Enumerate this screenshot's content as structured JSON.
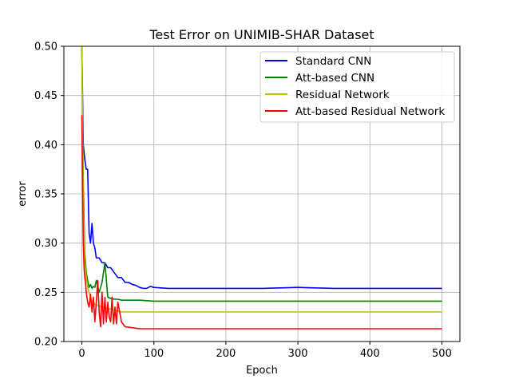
{
  "chart_data": {
    "type": "line",
    "title": "Test Error on UNIMIB-SHAR Dataset",
    "xlabel": "Epoch",
    "ylabel": "error",
    "xlim": [
      -25,
      525
    ],
    "ylim": [
      0.2,
      0.5
    ],
    "xticks": [
      0,
      100,
      200,
      300,
      400,
      500
    ],
    "yticks": [
      0.2,
      0.25,
      0.3,
      0.35,
      0.4,
      0.45,
      0.5
    ],
    "xtick_labels": [
      "0",
      "100",
      "200",
      "300",
      "400",
      "500"
    ],
    "ytick_labels": [
      "0.20",
      "0.25",
      "0.30",
      "0.35",
      "0.40",
      "0.45",
      "0.50"
    ],
    "grid": true,
    "legend_position": "top-right",
    "series": [
      {
        "name": "Standard CNN",
        "color": "#0000ff",
        "x": [
          0,
          2,
          4,
          6,
          8,
          10,
          12,
          14,
          16,
          18,
          20,
          24,
          28,
          32,
          36,
          40,
          45,
          50,
          55,
          60,
          65,
          70,
          75,
          80,
          85,
          90,
          95,
          100,
          120,
          150,
          200,
          250,
          300,
          350,
          400,
          450,
          500
        ],
        "y": [
          0.5,
          0.4,
          0.385,
          0.375,
          0.375,
          0.31,
          0.3,
          0.32,
          0.3,
          0.295,
          0.285,
          0.285,
          0.28,
          0.28,
          0.275,
          0.275,
          0.27,
          0.265,
          0.265,
          0.26,
          0.26,
          0.258,
          0.257,
          0.255,
          0.254,
          0.254,
          0.256,
          0.255,
          0.254,
          0.254,
          0.254,
          0.254,
          0.255,
          0.254,
          0.254,
          0.254,
          0.254
        ]
      },
      {
        "name": "Att-based CNN",
        "color": "#008000",
        "x": [
          0,
          2,
          4,
          6,
          8,
          10,
          12,
          14,
          16,
          18,
          20,
          24,
          28,
          32,
          36,
          40,
          45,
          50,
          55,
          60,
          70,
          80,
          100,
          150,
          200,
          250,
          300,
          350,
          400,
          450,
          500
        ],
        "y": [
          0.5,
          0.36,
          0.29,
          0.27,
          0.262,
          0.255,
          0.258,
          0.254,
          0.256,
          0.255,
          0.262,
          0.25,
          0.26,
          0.28,
          0.245,
          0.244,
          0.243,
          0.243,
          0.242,
          0.242,
          0.242,
          0.242,
          0.241,
          0.241,
          0.241,
          0.241,
          0.241,
          0.241,
          0.241,
          0.241,
          0.241
        ]
      },
      {
        "name": "Residual Network",
        "color": "#bfbf00",
        "x": [
          0,
          2,
          4,
          6,
          8,
          10,
          12,
          14,
          16,
          18,
          20,
          25,
          30,
          35,
          40,
          45,
          50,
          55,
          60,
          70,
          80,
          100,
          150,
          200,
          250,
          300,
          350,
          400,
          450,
          500
        ],
        "y": [
          0.5,
          0.34,
          0.28,
          0.265,
          0.255,
          0.25,
          0.245,
          0.24,
          0.24,
          0.238,
          0.237,
          0.236,
          0.235,
          0.234,
          0.233,
          0.232,
          0.231,
          0.23,
          0.23,
          0.23,
          0.23,
          0.23,
          0.23,
          0.23,
          0.23,
          0.23,
          0.23,
          0.23,
          0.23,
          0.23
        ]
      },
      {
        "name": "Att-based Residual Network",
        "color": "#ff0000",
        "x": [
          0,
          1,
          2,
          3,
          4,
          5,
          6,
          8,
          10,
          12,
          14,
          16,
          18,
          20,
          22,
          24,
          26,
          28,
          30,
          32,
          34,
          36,
          38,
          40,
          42,
          44,
          46,
          48,
          50,
          55,
          60,
          70,
          80,
          100,
          150,
          200,
          250,
          300,
          350,
          400,
          450,
          500
        ],
        "y": [
          0.43,
          0.36,
          0.3,
          0.275,
          0.265,
          0.26,
          0.25,
          0.24,
          0.235,
          0.248,
          0.23,
          0.245,
          0.22,
          0.24,
          0.262,
          0.23,
          0.215,
          0.25,
          0.218,
          0.245,
          0.22,
          0.24,
          0.225,
          0.22,
          0.245,
          0.218,
          0.235,
          0.218,
          0.24,
          0.22,
          0.215,
          0.214,
          0.213,
          0.213,
          0.213,
          0.213,
          0.213,
          0.213,
          0.213,
          0.213,
          0.213,
          0.213
        ]
      }
    ]
  }
}
